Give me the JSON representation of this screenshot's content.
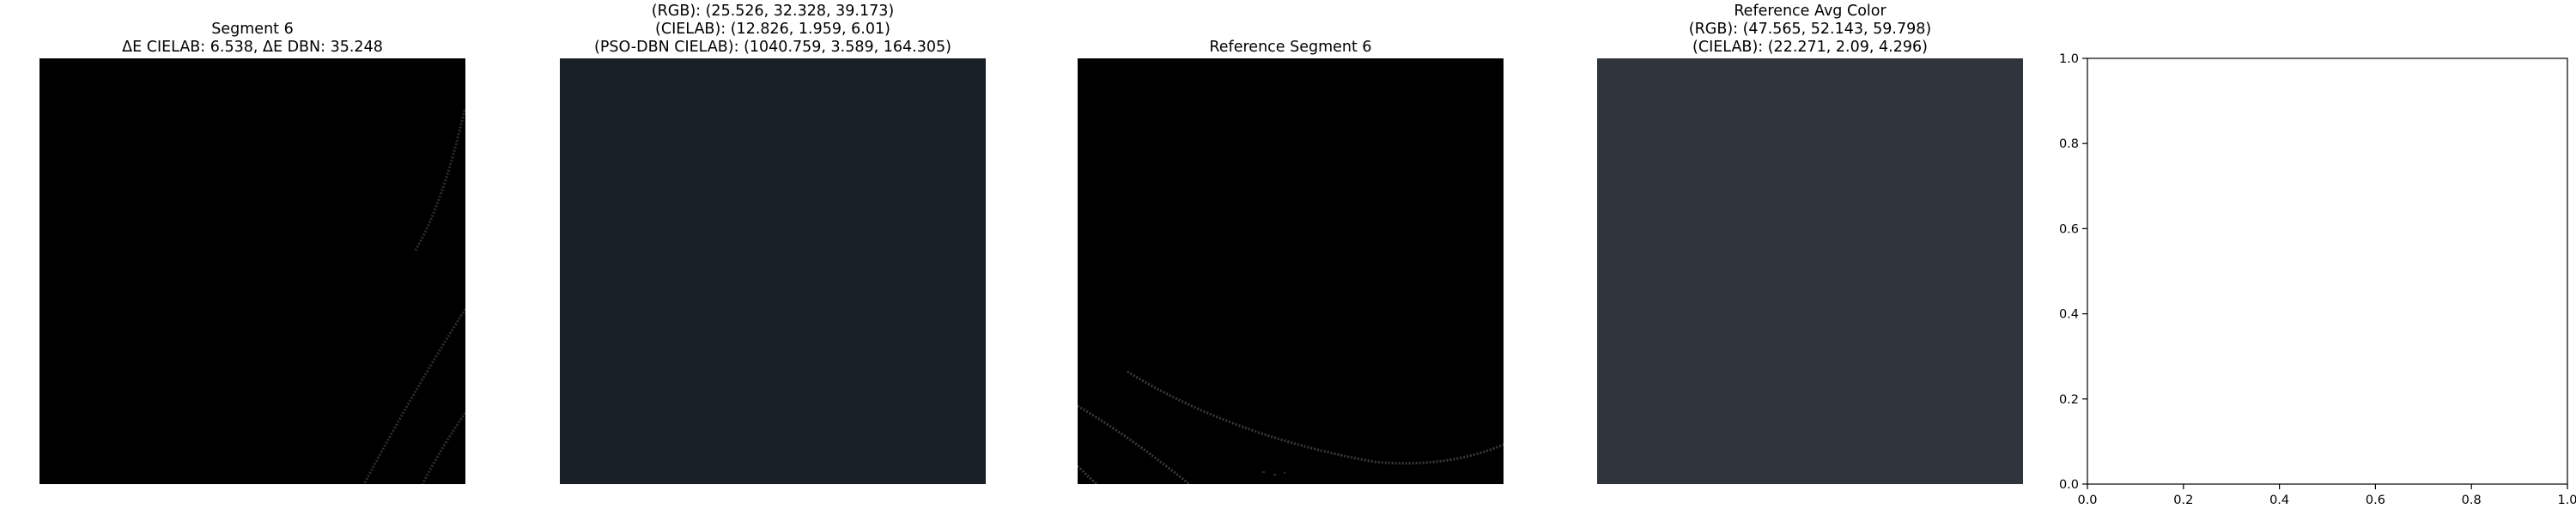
{
  "panels": [
    {
      "title_lines": [
        "Segment 6",
        "ΔE CIELAB: 6.538, ΔE DBN: 35.248"
      ]
    },
    {
      "title_lines": [
        "(RGB): (25.526, 32.328, 39.173)",
        "(CIELAB): (12.826, 1.959, 6.01)",
        "(PSO-DBN CIELAB): (1040.759, 3.589, 164.305)"
      ],
      "fill_color": "#1a2027"
    },
    {
      "title_lines": [
        "Reference Segment 6"
      ]
    },
    {
      "title_lines": [
        "Reference Avg Color",
        "(RGB): (47.565, 52.143, 59.798)",
        "(CIELAB): (22.271, 2.09, 4.296)"
      ],
      "fill_color": "#30343c"
    }
  ],
  "chart_data": {
    "type": "scatter",
    "title": "",
    "xlabel": "",
    "ylabel": "",
    "xlim": [
      0,
      1
    ],
    "ylim": [
      0,
      1
    ],
    "x_ticks": [
      "0.0",
      "0.2",
      "0.4",
      "0.6",
      "0.8",
      "1.0"
    ],
    "y_ticks": [
      "0.0",
      "0.2",
      "0.4",
      "0.6",
      "0.8",
      "1.0"
    ],
    "series": [],
    "grid": false
  }
}
